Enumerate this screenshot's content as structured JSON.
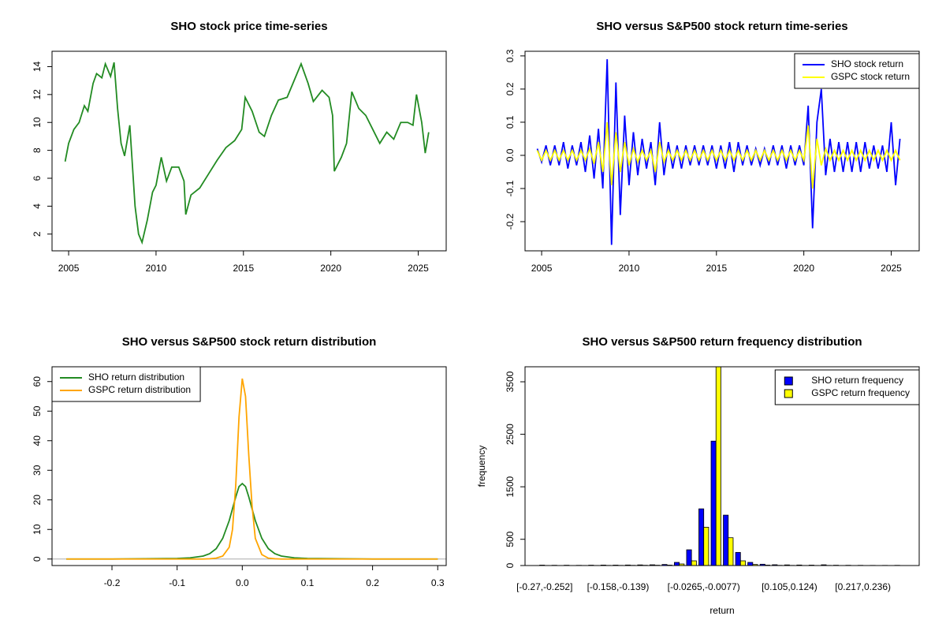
{
  "chart_data": [
    {
      "type": "line",
      "title": "SHO stock price time-series",
      "x": [
        2004.8,
        2005.0,
        2005.3,
        2005.6,
        2005.9,
        2006.1,
        2006.4,
        2006.6,
        2006.9,
        2007.1,
        2007.4,
        2007.6,
        2007.8,
        2008.0,
        2008.2,
        2008.5,
        2008.8,
        2009.0,
        2009.2,
        2009.5,
        2009.8,
        2010.0,
        2010.3,
        2010.6,
        2010.9,
        2011.3,
        2011.6,
        2011.7,
        2012.0,
        2012.5,
        2013.0,
        2013.5,
        2014.0,
        2014.5,
        2014.9,
        2015.1,
        2015.5,
        2015.9,
        2016.2,
        2016.6,
        2017.0,
        2017.5,
        2017.9,
        2018.3,
        2018.7,
        2019.0,
        2019.5,
        2019.9,
        2020.1,
        2020.2,
        2020.6,
        2020.9,
        2021.2,
        2021.6,
        2022.0,
        2022.4,
        2022.8,
        2023.2,
        2023.6,
        2024.0,
        2024.4,
        2024.7,
        2024.9,
        2025.2,
        2025.4,
        2025.6
      ],
      "series": [
        {
          "color": "#228B22",
          "values": [
            7.2,
            8.5,
            9.5,
            10,
            11.2,
            10.8,
            12.8,
            13.5,
            13.2,
            14.2,
            13.3,
            14.3,
            11,
            8.5,
            7.6,
            9.8,
            4,
            2,
            1.4,
            3,
            5,
            5.5,
            7.5,
            5.8,
            6.8,
            6.8,
            5.8,
            3.4,
            4.8,
            5.3,
            6.3,
            7.3,
            8.2,
            8.7,
            9.5,
            11.8,
            10.8,
            9.3,
            9,
            10.5,
            11.6,
            11.8,
            13,
            14.2,
            12.8,
            11.5,
            12.3,
            11.8,
            10.5,
            6.5,
            7.5,
            8.5,
            12.2,
            11,
            10.5,
            9.5,
            8.5,
            9.3,
            8.8,
            10,
            10,
            9.8,
            12,
            10,
            7.8,
            9.3
          ]
        }
      ],
      "xlim": [
        2004.05,
        2026.6
      ],
      "xticks": [
        2005,
        2010,
        2015,
        2020,
        2025
      ],
      "ylim": [
        0.8,
        15.1
      ],
      "yticks": [
        2,
        4,
        6,
        8,
        10,
        12,
        14
      ]
    },
    {
      "type": "line",
      "title": "SHO versus S&P500 stock return time-series",
      "x": [
        2004.75,
        2005,
        2005.25,
        2005.5,
        2005.75,
        2006,
        2006.25,
        2006.5,
        2006.75,
        2007,
        2007.25,
        2007.5,
        2007.75,
        2008,
        2008.25,
        2008.5,
        2008.75,
        2009,
        2009.25,
        2009.5,
        2009.75,
        2010,
        2010.25,
        2010.5,
        2010.75,
        2011,
        2011.25,
        2011.5,
        2011.75,
        2012,
        2012.25,
        2012.5,
        2012.75,
        2013,
        2013.25,
        2013.5,
        2013.75,
        2014,
        2014.25,
        2014.5,
        2014.75,
        2015,
        2015.25,
        2015.5,
        2015.75,
        2016,
        2016.25,
        2016.5,
        2016.75,
        2017,
        2017.25,
        2017.5,
        2017.75,
        2018,
        2018.25,
        2018.5,
        2018.75,
        2019,
        2019.25,
        2019.5,
        2019.75,
        2020,
        2020.25,
        2020.5,
        2020.75,
        2021,
        2021.25,
        2021.5,
        2021.75,
        2022,
        2022.25,
        2022.5,
        2022.75,
        2023,
        2023.25,
        2023.5,
        2023.75,
        2024,
        2024.25,
        2024.5,
        2024.75,
        2025,
        2025.25,
        2025.5
      ],
      "series": [
        {
          "name": "SHO stock return",
          "color": "#0000FF",
          "values": [
            0.02,
            -0.02,
            0.03,
            -0.03,
            0.03,
            -0.03,
            0.04,
            -0.04,
            0.03,
            -0.03,
            0.04,
            -0.05,
            0.06,
            -0.07,
            0.08,
            -0.1,
            0.29,
            -0.27,
            0.22,
            -0.18,
            0.12,
            -0.09,
            0.07,
            -0.06,
            0.05,
            -0.04,
            0.04,
            -0.09,
            0.1,
            -0.06,
            0.04,
            -0.04,
            0.03,
            -0.04,
            0.03,
            -0.03,
            0.03,
            -0.03,
            0.03,
            -0.03,
            0.03,
            -0.04,
            0.03,
            -0.04,
            0.04,
            -0.05,
            0.04,
            -0.03,
            0.03,
            -0.03,
            0.02,
            -0.03,
            0.02,
            -0.03,
            0.03,
            -0.03,
            0.03,
            -0.04,
            0.03,
            -0.03,
            0.03,
            -0.03,
            0.15,
            -0.22,
            0.1,
            0.2,
            -0.06,
            0.05,
            -0.05,
            0.04,
            -0.05,
            0.04,
            -0.05,
            0.04,
            -0.05,
            0.04,
            -0.04,
            0.03,
            -0.04,
            0.03,
            -0.05,
            0.1,
            -0.09,
            0.05
          ]
        },
        {
          "name": "GSPC stock return",
          "color": "#FFFF00",
          "values": [
            0.015,
            -0.015,
            0.015,
            -0.015,
            0.015,
            -0.015,
            0.015,
            -0.015,
            0.015,
            -0.015,
            0.015,
            -0.015,
            0.02,
            -0.025,
            0.04,
            -0.05,
            0.1,
            -0.09,
            0.07,
            -0.05,
            0.04,
            -0.03,
            0.02,
            -0.02,
            0.015,
            -0.015,
            0.015,
            -0.05,
            0.04,
            -0.02,
            0.015,
            -0.015,
            0.015,
            -0.015,
            0.015,
            -0.015,
            0.015,
            -0.015,
            0.015,
            -0.015,
            0.015,
            -0.015,
            0.015,
            -0.015,
            0.015,
            -0.015,
            0.015,
            -0.015,
            0.015,
            -0.015,
            0.015,
            -0.015,
            0.015,
            -0.015,
            0.015,
            -0.015,
            0.015,
            -0.015,
            0.015,
            -0.015,
            0.015,
            -0.015,
            0.09,
            -0.1,
            0.05,
            -0.03,
            0.02,
            -0.015,
            0.015,
            -0.015,
            0.015,
            -0.015,
            0.015,
            -0.015,
            0.015,
            -0.015,
            0.015,
            -0.015,
            0.015,
            -0.015,
            0.015,
            -0.015,
            0.015,
            -0.015
          ]
        }
      ],
      "xlim": [
        2004.05,
        2026.6
      ],
      "xticks": [
        2005,
        2010,
        2015,
        2020,
        2025
      ],
      "ylim": [
        -0.288,
        0.314
      ],
      "yticks": [
        -0.2,
        -0.1,
        {
          "value": 0,
          "label": "0.0"
        },
        0.1,
        0.2,
        0.3
      ],
      "legend": "topright"
    },
    {
      "type": "line",
      "title": "SHO versus S&P500 stock return distribution",
      "x": [
        -0.27,
        -0.2,
        -0.15,
        -0.1,
        -0.08,
        -0.06,
        -0.05,
        -0.04,
        -0.03,
        -0.02,
        -0.015,
        -0.01,
        -0.005,
        0,
        0.005,
        0.01,
        0.015,
        0.02,
        0.03,
        0.04,
        0.05,
        0.06,
        0.08,
        0.1,
        0.15,
        0.2,
        0.3
      ],
      "series": [
        {
          "name": "SHO return distribution",
          "color": "#228B22",
          "values": [
            0,
            0,
            0.1,
            0.2,
            0.4,
            1,
            1.8,
            3.5,
            7,
            13,
            17,
            21,
            24.5,
            25.5,
            24.5,
            21,
            17,
            13,
            7,
            3.5,
            1.8,
            1,
            0.4,
            0.2,
            0.1,
            0,
            0
          ]
        },
        {
          "name": "GSPC return distribution",
          "color": "#FFA500",
          "values": [
            0,
            0,
            0,
            0,
            0,
            0,
            0.1,
            0.3,
            1,
            4,
            10,
            25,
            48,
            61,
            55,
            35,
            18,
            7,
            1.5,
            0.3,
            0.1,
            0,
            0,
            0,
            0,
            0,
            0
          ]
        }
      ],
      "xlim": [
        -0.292,
        0.313
      ],
      "xticks": [
        -0.2,
        -0.1,
        {
          "value": 0,
          "label": "0.0"
        },
        0.1,
        0.2,
        0.3
      ],
      "ylim": [
        -2.2,
        65
      ],
      "yticks": [
        0,
        10,
        20,
        30,
        40,
        50,
        60
      ],
      "zero_line": true,
      "legend": "topleft"
    },
    {
      "type": "bar",
      "title": "SHO versus S&P500 return frequency distribution",
      "x_label": "return",
      "y_label": "frequency",
      "categories": [
        "[-0.27,-0.252]",
        null,
        null,
        null,
        null,
        null,
        "[-0.158,-0.139)",
        null,
        null,
        null,
        null,
        null,
        null,
        "[-0.0265,-0.0077)",
        null,
        null,
        null,
        null,
        null,
        null,
        "[0.105,0.124)",
        null,
        null,
        null,
        null,
        null,
        "[0.217,0.236)",
        null,
        null,
        null
      ],
      "series": [
        {
          "name": "SHO return frequency",
          "color": "#0000FF",
          "values": [
            8,
            5,
            6,
            4,
            7,
            9,
            8,
            10,
            12,
            14,
            20,
            60,
            300,
            1080,
            2370,
            960,
            250,
            60,
            25,
            15,
            12,
            10,
            8,
            14,
            6,
            5,
            4,
            3,
            3,
            4
          ]
        },
        {
          "name": "GSPC return frequency",
          "color": "#FFFF00",
          "values": [
            2,
            1,
            1,
            2,
            2,
            3,
            3,
            4,
            5,
            6,
            8,
            30,
            90,
            730,
            4000,
            530,
            90,
            20,
            8,
            4,
            3,
            2,
            2,
            3,
            1,
            1,
            1,
            1,
            1,
            1
          ]
        }
      ],
      "ylim": [
        0,
        3786
      ],
      "yticks": [
        0,
        500,
        1500,
        2500,
        3500
      ],
      "legend": "topright"
    }
  ]
}
